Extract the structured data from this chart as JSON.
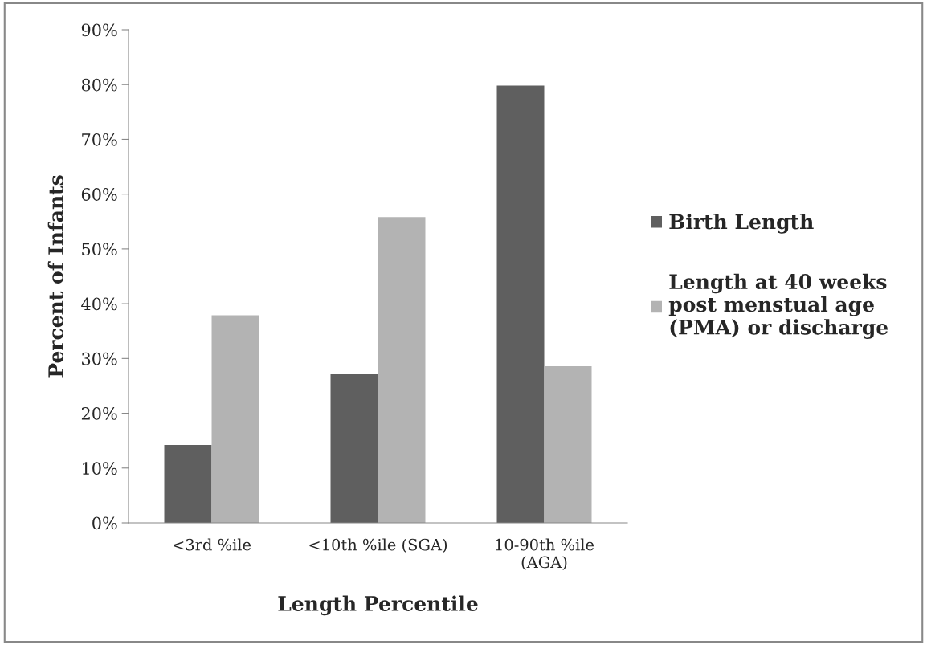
{
  "chart_data": {
    "type": "bar",
    "xlabel": "Length Percentile",
    "ylabel": "Percent of Infants",
    "categories": [
      "<3rd %ile",
      "<10th %ile (SGA)",
      "10-90th %ile\n(AGA)"
    ],
    "series": [
      {
        "name": "Birth Length",
        "color": "#5f5f5f",
        "values": [
          14.2,
          27.2,
          79.8
        ]
      },
      {
        "name": "Length at 40 weeks post menstual age (PMA) or discharge",
        "color": "#b3b3b3",
        "values": [
          37.9,
          55.8,
          28.6
        ]
      }
    ],
    "ylim": [
      0,
      90
    ],
    "yticks": [
      {
        "value": 0,
        "label": "0%"
      },
      {
        "value": 10,
        "label": "10%"
      },
      {
        "value": 20,
        "label": "20%"
      },
      {
        "value": 30,
        "label": "30%"
      },
      {
        "value": 40,
        "label": "40%"
      },
      {
        "value": 50,
        "label": "50%"
      },
      {
        "value": 60,
        "label": "60%"
      },
      {
        "value": 70,
        "label": "70%"
      },
      {
        "value": 80,
        "label": "80%"
      },
      {
        "value": 90,
        "label": "90%"
      }
    ],
    "grid": false,
    "legend": "right"
  }
}
